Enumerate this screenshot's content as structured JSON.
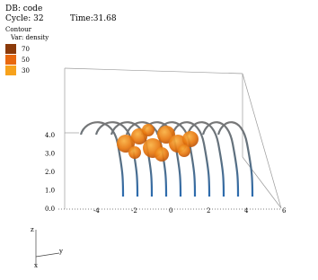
{
  "header": {
    "database": "DB: code",
    "cycle": "Cycle: 32",
    "time": "Time:31.68"
  },
  "legend": {
    "title": "Contour",
    "variable": "Var: density",
    "levels": [
      {
        "label": "70",
        "color": "#8b3a0a"
      },
      {
        "label": "50",
        "color": "#e8680f"
      },
      {
        "label": "30",
        "color": "#f7a21c"
      }
    ]
  },
  "axes": {
    "x_ticks": [
      "-4",
      "-2",
      "0",
      "2",
      "4",
      "6"
    ],
    "y_ticks": [
      "4.0",
      "3.0",
      "2.0",
      "1.0",
      "0.0"
    ]
  },
  "triad": {
    "z": "z",
    "y": "y",
    "x": "x"
  }
}
